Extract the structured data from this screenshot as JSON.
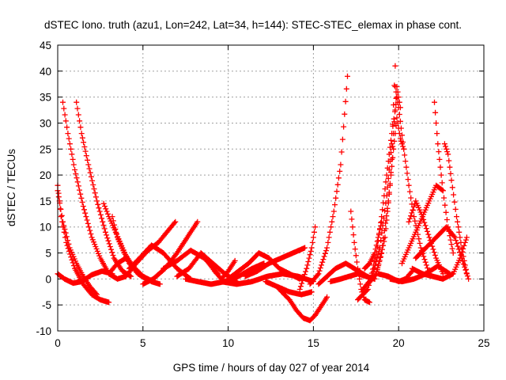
{
  "chart_data": {
    "type": "scatter",
    "title": "dSTEC Iono. truth (azu1, Lon=242, Lat=34, h=144): STEC-STEC_elemax in phase cont.",
    "xlabel": "GPS time / hours of day 027 of year 2014",
    "ylabel": "dSTEC  / TECUs",
    "xlim": [
      0,
      25
    ],
    "ylim": [
      -10,
      45
    ],
    "xticks": [
      "0",
      "5",
      "10",
      "15",
      "20",
      "25"
    ],
    "yticks": [
      "-10",
      "-5",
      "0",
      "5",
      "10",
      "15",
      "20",
      "25",
      "30",
      "35",
      "40",
      "45"
    ],
    "grid": true,
    "marker": "plus",
    "colors": {
      "series": "#ff0000"
    },
    "series": [
      {
        "x": [
          0.0,
          0.2,
          0.5,
          1.0,
          1.5,
          2.0,
          2.5,
          3.0
        ],
        "y": [
          18,
          12,
          7,
          2,
          -1,
          -3,
          -4,
          -4.5
        ]
      },
      {
        "x": [
          0.3,
          0.6,
          1.0,
          1.5,
          2.0,
          2.5,
          3.0,
          3.5,
          4.0
        ],
        "y": [
          34,
          28,
          21,
          14,
          8,
          4,
          1,
          0,
          0.5
        ]
      },
      {
        "x": [
          1.1,
          1.4,
          1.8,
          2.3,
          2.8,
          3.3,
          3.8,
          4.3
        ],
        "y": [
          34,
          28,
          22,
          15,
          9,
          4,
          1.5,
          0.5
        ]
      },
      {
        "x": [
          0.0,
          0.3,
          0.7,
          1.1,
          1.5,
          1.9,
          2.3
        ],
        "y": [
          17,
          11,
          6,
          3,
          0.5,
          -1.5,
          -3
        ]
      },
      {
        "x": [
          0.0,
          0.4,
          0.9,
          1.4,
          2.0,
          2.6,
          3.2
        ],
        "y": [
          1,
          0,
          -0.8,
          -0.5,
          0.8,
          1.5,
          1
        ]
      },
      {
        "x": [
          2.7,
          3.0,
          3.4,
          3.8,
          4.2,
          4.7,
          5.2
        ],
        "y": [
          14.5,
          12,
          9,
          6,
          3,
          1,
          0
        ]
      },
      {
        "x": [
          3.2,
          3.5,
          3.9,
          4.4,
          5.0,
          5.6
        ],
        "y": [
          12,
          8,
          5,
          2.5,
          0.5,
          -0.5
        ]
      },
      {
        "x": [
          3.0,
          3.5,
          4.0,
          4.5,
          5.0,
          5.5,
          6.0
        ],
        "y": [
          1,
          3,
          4,
          2,
          0.5,
          -0.5,
          -1
        ]
      },
      {
        "x": [
          4.0,
          4.6,
          5.3,
          5.9,
          6.4,
          6.9
        ],
        "y": [
          0.5,
          3,
          5.5,
          7,
          9,
          11
        ]
      },
      {
        "x": [
          4.2,
          4.8,
          5.5,
          6.2,
          7.0,
          7.8
        ],
        "y": [
          2,
          4,
          6.5,
          5,
          2,
          0
        ]
      },
      {
        "x": [
          5.0,
          5.6,
          6.3,
          7.0,
          7.6,
          8.2
        ],
        "y": [
          -1,
          0,
          2,
          5,
          8,
          11
        ]
      },
      {
        "x": [
          6.2,
          7.0,
          7.8,
          8.6,
          9.4
        ],
        "y": [
          2,
          3.5,
          5.5,
          4,
          1
        ]
      },
      {
        "x": [
          7.0,
          7.7,
          8.4,
          9.1,
          9.8,
          10.5
        ],
        "y": [
          0.5,
          2,
          5,
          3,
          1,
          -0.5
        ]
      },
      {
        "x": [
          7.5,
          8.2,
          9.0,
          9.8,
          10.6,
          11.4,
          12.1
        ],
        "y": [
          0,
          -0.5,
          -1,
          -0.5,
          0.5,
          2,
          3
        ]
      },
      {
        "x": [
          8.8,
          9.2,
          9.6,
          10.0,
          10.4
        ],
        "y": [
          3.5,
          1.5,
          0,
          1.5,
          3.5
        ]
      },
      {
        "x": [
          10.0,
          10.6,
          11.2,
          11.8,
          12.4,
          13.0,
          13.6,
          14.2
        ],
        "y": [
          0,
          1.5,
          3,
          5,
          4,
          2,
          1,
          0
        ]
      },
      {
        "x": [
          11.0,
          11.7,
          12.4,
          13.1,
          13.8,
          14.5
        ],
        "y": [
          0.5,
          1.5,
          3,
          4,
          5,
          6
        ]
      },
      {
        "x": [
          9.6,
          10.5,
          11.4,
          12.3,
          13.2,
          14.1,
          15.0
        ],
        "y": [
          -0.5,
          -1,
          -0.5,
          0.5,
          1,
          0.5,
          -0.5
        ]
      },
      {
        "x": [
          12.2,
          12.9,
          13.6,
          14.3,
          14.9
        ],
        "y": [
          -0.5,
          -1.5,
          -2.5,
          -3,
          -2.5
        ]
      },
      {
        "x": [
          13.0,
          13.6,
          14.0,
          14.4,
          14.8,
          15.1,
          15.4,
          15.8
        ],
        "y": [
          -2,
          -4,
          -6,
          -7.5,
          -8,
          -7,
          -5.5,
          -3.5
        ]
      },
      {
        "x": [
          14.2,
          14.6,
          14.9,
          15.1
        ],
        "y": [
          -2,
          2,
          6,
          10
        ]
      },
      {
        "x": [
          14.8,
          15.3,
          15.8,
          16.2,
          16.6,
          17.0
        ],
        "y": [
          -1,
          1,
          6,
          13,
          22,
          39
        ]
      },
      {
        "x": [
          15.3,
          15.8,
          16.3,
          16.9,
          17.4,
          17.9,
          18.4
        ],
        "y": [
          -1,
          0.5,
          2,
          3,
          2,
          1,
          0
        ]
      },
      {
        "x": [
          16.0,
          16.6,
          17.1,
          17.6,
          18.1,
          18.6
        ],
        "y": [
          -0.5,
          0,
          0.5,
          1,
          0.5,
          0
        ]
      },
      {
        "x": [
          17.2,
          17.4,
          17.6,
          17.8,
          18.0,
          18.3
        ],
        "y": [
          13,
          7,
          2,
          -2,
          -4,
          -4.5
        ]
      },
      {
        "x": [
          18.0,
          18.3,
          18.6,
          18.8,
          19.0
        ],
        "y": [
          2,
          3,
          5,
          8,
          11
        ]
      },
      {
        "x": [
          17.6,
          18.2,
          18.7,
          19.0,
          19.3,
          19.6,
          19.9
        ],
        "y": [
          -4,
          -2,
          5,
          12,
          20,
          28,
          35
        ]
      },
      {
        "x": [
          17.9,
          18.4,
          18.9,
          19.3,
          19.6,
          19.8
        ],
        "y": [
          -2,
          0,
          6,
          16,
          26,
          41
        ]
      },
      {
        "x": [
          18.2,
          18.7,
          19.2,
          19.5,
          19.7,
          19.9,
          20.1
        ],
        "y": [
          -1,
          1,
          8,
          18,
          28,
          37,
          33
        ]
      },
      {
        "x": [
          18.6,
          19.0,
          19.4,
          19.7,
          19.9,
          20.1,
          20.3
        ],
        "y": [
          0,
          5,
          15,
          25,
          31,
          27,
          25
        ]
      },
      {
        "x": [
          19.8,
          20.0,
          20.3,
          20.6,
          20.9,
          21.3,
          21.8
        ],
        "y": [
          37,
          33,
          25,
          18,
          12,
          6,
          1
        ]
      },
      {
        "x": [
          20.2,
          20.6,
          21.0,
          21.4,
          21.8,
          22.2,
          22.6
        ],
        "y": [
          3,
          6,
          9,
          12,
          15,
          18,
          17
        ]
      },
      {
        "x": [
          20.6,
          21.0,
          21.4,
          21.8,
          22.2,
          22.6
        ],
        "y": [
          11,
          15,
          12,
          8,
          4,
          1
        ]
      },
      {
        "x": [
          19.5,
          20.2,
          20.9,
          21.6,
          22.3,
          23.0
        ],
        "y": [
          0,
          -0.5,
          0,
          1,
          2.5,
          1
        ]
      },
      {
        "x": [
          22.1,
          22.3,
          22.6,
          22.9,
          23.2
        ],
        "y": [
          34,
          26,
          17,
          10,
          5
        ]
      },
      {
        "x": [
          22.7,
          22.9,
          23.1,
          23.4,
          23.7,
          24.0
        ],
        "y": [
          26,
          24,
          19,
          12,
          6,
          1
        ]
      },
      {
        "x": [
          20.8,
          21.4,
          22.0,
          22.6,
          23.2,
          23.6,
          23.9,
          24.0
        ],
        "y": [
          2,
          1,
          0.5,
          0,
          1,
          4,
          7,
          8
        ]
      },
      {
        "x": [
          21.0,
          21.6,
          22.2,
          22.8,
          23.3,
          23.7,
          24.1
        ],
        "y": [
          4,
          6,
          8,
          10,
          8,
          4,
          0
        ]
      },
      {
        "x": [
          18.8,
          19.4,
          20.0,
          20.4,
          20.8
        ],
        "y": [
          1,
          0.5,
          -0.5,
          0,
          1.5
        ]
      }
    ]
  }
}
